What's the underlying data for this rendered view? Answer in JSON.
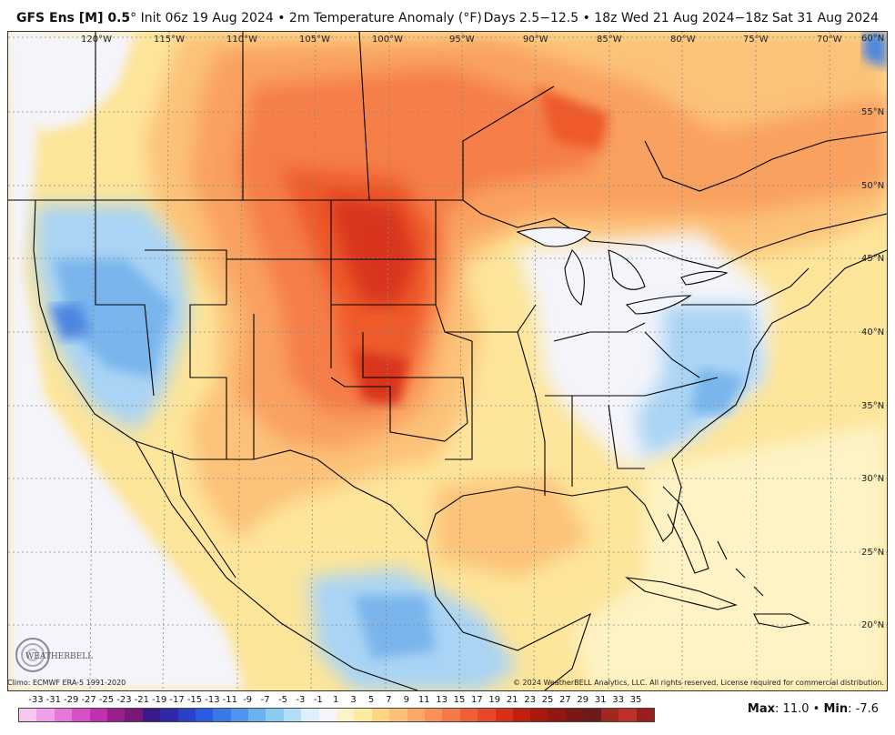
{
  "header": {
    "model": "GFS Ens [M] 0.5",
    "degree": "°",
    "init": "Init 06z 19 Aug 2024",
    "bullet": "•",
    "field": "2m Temperature Anomaly (°F)",
    "range": "Days 2.5−12.5 • 18z Wed 21 Aug 2024−18z Sat 31 Aug 2024"
  },
  "map": {
    "lon_labels": [
      "120°W",
      "115°W",
      "110°W",
      "105°W",
      "100°W",
      "95°W",
      "90°W",
      "85°W",
      "80°W",
      "75°W",
      "70°W"
    ],
    "lat_labels": [
      "60°N",
      "55°N",
      "50°N",
      "45°N",
      "40°N",
      "35°N",
      "30°N",
      "25°N",
      "20°N"
    ],
    "colors": {
      "ocean_neutral": "#f4f4fb",
      "warm1": "#fdf3c4",
      "warm2": "#fde59a",
      "warm3": "#fcc279",
      "warm4": "#f9a160",
      "warm5": "#f57e49",
      "warm6": "#ee5a2c",
      "warm7": "#d8361a",
      "cool1": "#d7ecfa",
      "cool2": "#a9d4f5",
      "cool3": "#79b5ec",
      "cool4": "#4e86e0"
    }
  },
  "footer": {
    "climo": "Climo: ECMWF ERA-5 1991-2020",
    "copyright": "© 2024 WeatherBELL Analytics, LLC. All rights reserved. License required for commercial distribution.",
    "logo_text": "WEATHERBELL"
  },
  "legend": {
    "labels": [
      "-33",
      "-31",
      "-29",
      "-27",
      "-25",
      "-23",
      "-21",
      "-19",
      "-17",
      "-15",
      "-13",
      "-11",
      "-9",
      "-7",
      "-5",
      "-3",
      "-1",
      "1",
      "3",
      "5",
      "7",
      "9",
      "11",
      "13",
      "15",
      "17",
      "19",
      "21",
      "23",
      "25",
      "27",
      "29",
      "31",
      "33",
      "35"
    ],
    "colors": [
      "#f7c6ef",
      "#f0a0e6",
      "#e778da",
      "#d850c8",
      "#c030b0",
      "#9a2090",
      "#7a1878",
      "#3a1a8a",
      "#3028a8",
      "#2a40c8",
      "#2c5ae0",
      "#3a78e8",
      "#4e96ec",
      "#68b2f0",
      "#8ccaf2",
      "#b4def6",
      "#dceffa",
      "#f6f6fa",
      "#fcf4c8",
      "#fde9a0",
      "#fdd684",
      "#fcc078",
      "#fba868",
      "#f99058",
      "#f57848",
      "#f06038",
      "#e84828",
      "#d83018",
      "#c02010",
      "#a8180c",
      "#901810",
      "#7a1818",
      "#6a1c1c",
      "#a0281e",
      "#c0302a",
      "#9a1e1e"
    ]
  },
  "stats": {
    "max_label": "Max",
    "max_value": "11.0",
    "bullet": "•",
    "min_label": "Min",
    "min_value": "-7.6"
  }
}
